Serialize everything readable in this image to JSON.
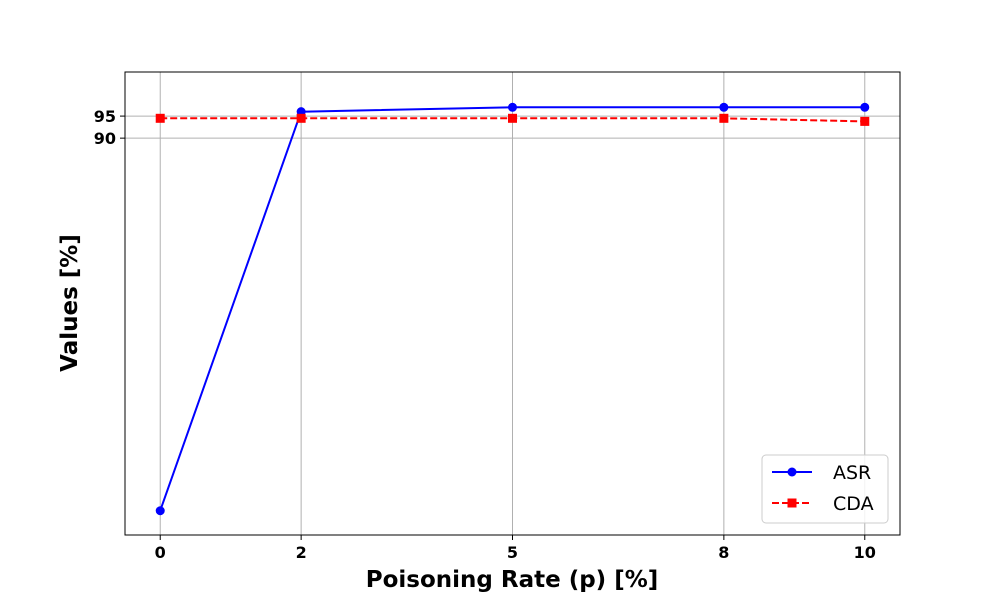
{
  "chart_data": {
    "type": "line",
    "x": [
      0,
      2,
      5,
      8,
      10
    ],
    "x_ticks": [
      "0",
      "2",
      "5",
      "8",
      "10"
    ],
    "y_ticks": [
      "90",
      "95"
    ],
    "y_tick_values": [
      90,
      95
    ],
    "xlim": [
      -0.5,
      10.5
    ],
    "ylim": [
      0,
      105
    ],
    "xlabel": "Poisoning Rate (p) [%]",
    "ylabel": "Values [%]",
    "title": "",
    "grid": true,
    "legend_position": "lower-right",
    "series": [
      {
        "name": "ASR",
        "values": [
          5.5,
          96,
          97,
          97,
          97
        ],
        "color": "#0000ff",
        "line_style": "solid",
        "marker": "circle"
      },
      {
        "name": "CDA",
        "values": [
          94.5,
          94.5,
          94.5,
          94.5,
          93.8
        ],
        "color": "#ff0000",
        "line_style": "dashed",
        "marker": "square"
      }
    ]
  }
}
